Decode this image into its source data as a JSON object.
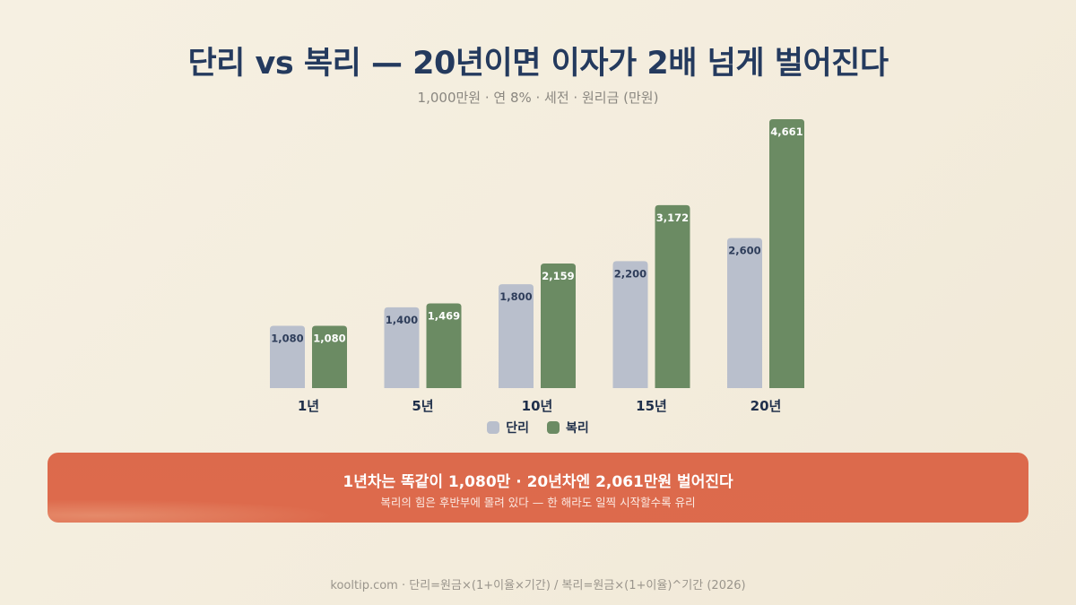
{
  "title": "단리 vs 복리 — 20년이면 이자가 2배 넘게 벌어진다",
  "subtitle": "1,000만원 · 연 8% · 세전 · 원리금 (만원)",
  "colors": {
    "simple": "#b9bfcc",
    "compound": "#6b8b63",
    "title": "#243a5e",
    "callout": "#dc6a4c"
  },
  "chart_data": {
    "type": "bar",
    "categories": [
      "1년",
      "5년",
      "10년",
      "15년",
      "20년"
    ],
    "series": [
      {
        "name": "단리",
        "values": [
          1080,
          1400,
          1800,
          2200,
          2600
        ],
        "labels": [
          "1,080",
          "1,400",
          "1,800",
          "2,200",
          "2,600"
        ]
      },
      {
        "name": "복리",
        "values": [
          1080,
          1469,
          2159,
          3172,
          4661
        ],
        "labels": [
          "1,080",
          "1,469",
          "2,159",
          "3,172",
          "4,661"
        ]
      }
    ],
    "ylim": [
      0,
      4661
    ],
    "grid": false,
    "legend": "bottom"
  },
  "legend": {
    "simple": "단리",
    "compound": "복리"
  },
  "callout": {
    "main": "1년차는 똑같이 1,080만 · 20년차엔 2,061만원 벌어진다",
    "sub": "복리의 힘은 후반부에 몰려 있다 — 한 해라도 일찍 시작할수록 유리"
  },
  "footer": "kooltip.com · 단리=원금×(1+이율×기간) / 복리=원금×(1+이율)^기간 (2026)"
}
